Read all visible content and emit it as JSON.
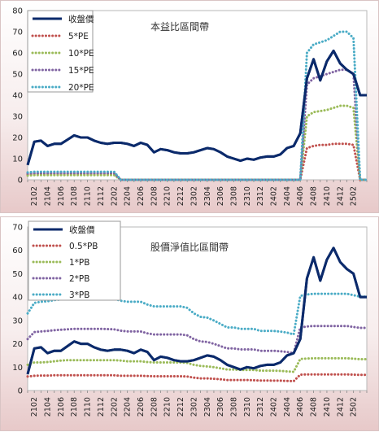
{
  "colors": {
    "close": "#0b2a6b",
    "m1": "#c0504d",
    "m2": "#9bbb59",
    "m3": "#8064a2",
    "m4": "#4bacc6"
  },
  "chart_data": [
    {
      "type": "line",
      "title": "本益比區間帶",
      "ylim": [
        0,
        80
      ],
      "yticks": [
        0,
        10,
        20,
        30,
        40,
        50,
        60,
        70,
        80
      ],
      "x_tick_labels": [
        "2102",
        "2104",
        "2106",
        "2108",
        "2110",
        "2112",
        "2202",
        "2204",
        "2206",
        "2208",
        "2210",
        "2212",
        "2302",
        "2304",
        "2306",
        "2308",
        "2310",
        "2312",
        "2402",
        "2404",
        "2406",
        "2408",
        "2410",
        "2412",
        "2502"
      ],
      "legend_position": "top-left",
      "grid": false,
      "series": [
        {
          "name": "收盤價",
          "color_key": "close",
          "style": "solid",
          "values": [
            7,
            18,
            18.5,
            16,
            17,
            17,
            19,
            21,
            20,
            20,
            18.5,
            17.5,
            17,
            17.5,
            17.5,
            17,
            16,
            17.5,
            16.5,
            13,
            14.5,
            14,
            13,
            12.5,
            12.5,
            13,
            14,
            15,
            14.5,
            13,
            11,
            10,
            9,
            10,
            9.5,
            10.5,
            11,
            11,
            12,
            15,
            16,
            22,
            48,
            57,
            47,
            56,
            61,
            55,
            52,
            50,
            40,
            40
          ]
        },
        {
          "name": "5*PE",
          "color_key": "m1",
          "style": "dotted",
          "values": [
            2.5,
            2.8,
            2.8,
            2.8,
            2.8,
            2.8,
            2.8,
            2.8,
            2.8,
            2.8,
            2.8,
            2.8,
            2.8,
            2.8,
            0,
            0,
            0,
            0,
            0,
            0,
            0,
            0,
            0,
            0,
            0,
            0,
            0,
            0,
            0,
            0,
            0,
            0,
            0,
            0,
            0,
            0,
            0,
            0,
            0,
            0,
            0,
            0,
            15,
            16,
            16.5,
            16.5,
            17,
            17,
            17,
            16.5,
            0,
            0
          ]
        },
        {
          "name": "10*PE",
          "color_key": "m2",
          "style": "dotted",
          "values": [
            2,
            2.2,
            2.2,
            2.2,
            2.2,
            2.2,
            2.2,
            2.2,
            2.2,
            2.2,
            2.2,
            2.2,
            2.2,
            2.2,
            0,
            0,
            0,
            0,
            0,
            0,
            0,
            0,
            0,
            0,
            0,
            0,
            0,
            0,
            0,
            0,
            0,
            0,
            0,
            0,
            0,
            0,
            0,
            0,
            0,
            0,
            0,
            0,
            30,
            32,
            32.5,
            33,
            34,
            35,
            35,
            34,
            0,
            0
          ]
        },
        {
          "name": "15*PE",
          "color_key": "m3",
          "style": "dotted",
          "values": [
            3,
            3.2,
            3.2,
            3.2,
            3.2,
            3.2,
            3.2,
            3.2,
            3.2,
            3.2,
            3.2,
            3.2,
            3.2,
            3.2,
            0,
            0,
            0,
            0,
            0,
            0,
            0,
            0,
            0,
            0,
            0,
            0,
            0,
            0,
            0,
            0,
            0,
            0,
            0,
            0,
            0,
            0,
            0,
            0,
            0,
            0,
            0,
            0,
            45,
            48,
            49,
            50,
            51,
            52,
            52,
            50,
            0,
            0
          ]
        },
        {
          "name": "20*PE",
          "color_key": "m4",
          "style": "dotted",
          "values": [
            3.5,
            3.8,
            3.8,
            3.8,
            3.8,
            3.8,
            3.8,
            3.8,
            3.8,
            3.8,
            3.8,
            3.8,
            3.8,
            3.8,
            0,
            0,
            0,
            0,
            0,
            0,
            0,
            0,
            0,
            0,
            0,
            0,
            0,
            0,
            0,
            0,
            0,
            0,
            0,
            0,
            0,
            0,
            0,
            0,
            0,
            0,
            0,
            0,
            60,
            64,
            65,
            66,
            68,
            70,
            70,
            67,
            0,
            0
          ]
        }
      ]
    },
    {
      "type": "line",
      "title": "股價淨值比區間帶",
      "ylim": [
        0,
        70
      ],
      "yticks": [
        0,
        10,
        20,
        30,
        40,
        50,
        60,
        70
      ],
      "x_tick_labels": [
        "2102",
        "2104",
        "2106",
        "2108",
        "2110",
        "2112",
        "2202",
        "2204",
        "2206",
        "2208",
        "2210",
        "2212",
        "2302",
        "2304",
        "2306",
        "2308",
        "2310",
        "2312",
        "2402",
        "2404",
        "2406",
        "2408",
        "2410",
        "2412",
        "2502"
      ],
      "legend_position": "top-left",
      "grid": false,
      "series": [
        {
          "name": "收盤價",
          "color_key": "close",
          "style": "solid",
          "values": [
            7,
            18,
            18.5,
            16,
            17,
            17,
            19,
            21,
            20,
            20,
            18.5,
            17.5,
            17,
            17.5,
            17.5,
            17,
            16,
            17.5,
            16.5,
            13,
            14.5,
            14,
            13,
            12.5,
            12.5,
            13,
            14,
            15,
            14.5,
            13,
            11,
            10,
            9,
            10,
            9.5,
            10.5,
            11,
            11,
            12,
            15,
            16,
            22,
            48,
            57,
            47,
            56,
            61,
            55,
            52,
            50,
            40,
            40
          ]
        },
        {
          "name": "0.5*PB",
          "color_key": "m1",
          "style": "dotted",
          "values": [
            6,
            6.3,
            6.4,
            6.4,
            6.5,
            6.5,
            6.5,
            6.5,
            6.5,
            6.5,
            6.5,
            6.5,
            6.5,
            6.5,
            6.3,
            6.3,
            6.3,
            6.3,
            6.2,
            6.1,
            6.1,
            6.1,
            6.1,
            6.1,
            6,
            5.5,
            5.2,
            5.2,
            5,
            4.8,
            4.5,
            4.5,
            4.5,
            4.5,
            4.4,
            4.3,
            4.3,
            4.2,
            4.2,
            4.1,
            4,
            6.8,
            6.9,
            6.9,
            6.9,
            6.9,
            6.9,
            6.9,
            6.9,
            6.8,
            6.7,
            6.7
          ]
        },
        {
          "name": "1*PB",
          "color_key": "m2",
          "style": "dotted",
          "values": [
            11,
            12,
            12,
            12.2,
            12.5,
            12.8,
            13,
            13,
            13,
            13,
            13,
            13,
            13,
            13,
            12.8,
            12.5,
            12.5,
            12.5,
            12.2,
            12,
            12,
            12,
            12,
            12,
            11.8,
            11,
            10.5,
            10.3,
            10,
            9.5,
            9,
            9,
            8.8,
            8.8,
            8.8,
            8.5,
            8.5,
            8.5,
            8.4,
            8.2,
            8,
            13.5,
            13.7,
            13.8,
            13.8,
            13.8,
            13.8,
            13.8,
            13.8,
            13.6,
            13.4,
            13.4
          ]
        },
        {
          "name": "2*PB",
          "color_key": "m3",
          "style": "dotted",
          "values": [
            22,
            25,
            25.3,
            25.5,
            25.8,
            26,
            26.2,
            26.4,
            26.4,
            26.4,
            26.4,
            26.4,
            26.3,
            26.2,
            25.6,
            25.3,
            25.3,
            25.3,
            24.5,
            24,
            24,
            24,
            24,
            24,
            23.6,
            22,
            21,
            20.8,
            20,
            19,
            18,
            18,
            17.6,
            17.6,
            17.6,
            17,
            17,
            17,
            16.8,
            16.5,
            16,
            27,
            27.4,
            27.6,
            27.6,
            27.6,
            27.6,
            27.6,
            27.6,
            27.2,
            26.8,
            26.8
          ]
        },
        {
          "name": "3*PB",
          "color_key": "m4",
          "style": "dotted",
          "values": [
            33,
            37.5,
            38,
            38.2,
            38.7,
            39,
            39.3,
            39.6,
            39.6,
            39.6,
            39.6,
            39.6,
            39.5,
            39.3,
            38.4,
            38,
            38,
            38,
            36.8,
            36,
            36,
            36,
            36,
            36,
            35.4,
            33,
            31.5,
            31.2,
            30,
            28.5,
            27,
            27,
            26.4,
            26.4,
            26.4,
            25.5,
            25.5,
            25.5,
            25.2,
            24.8,
            24,
            40.5,
            41.1,
            41.4,
            41.4,
            41.4,
            41.4,
            41.4,
            41.4,
            40.8,
            40.2,
            40.2
          ]
        }
      ]
    }
  ]
}
